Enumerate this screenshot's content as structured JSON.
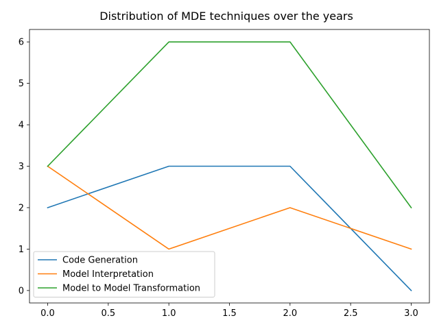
{
  "chart_data": {
    "type": "line",
    "title": "Distribution of MDE techniques over the years",
    "xlabel": "",
    "ylabel": "",
    "x": [
      0,
      1,
      2,
      3
    ],
    "xlim": [
      -0.15,
      3.15
    ],
    "ylim": [
      -0.3,
      6.3
    ],
    "xticks": [
      0.0,
      0.5,
      1.0,
      1.5,
      2.0,
      2.5,
      3.0
    ],
    "xtick_labels": [
      "0.0",
      "0.5",
      "1.0",
      "1.5",
      "2.0",
      "2.5",
      "3.0"
    ],
    "yticks": [
      0,
      1,
      2,
      3,
      4,
      5,
      6
    ],
    "ytick_labels": [
      "0",
      "1",
      "2",
      "3",
      "4",
      "5",
      "6"
    ],
    "grid": false,
    "legend_position": "lower-left",
    "series": [
      {
        "name": "Code Generation",
        "color": "#1f77b4",
        "values": [
          2,
          3,
          3,
          0
        ]
      },
      {
        "name": "Model Interpretation",
        "color": "#ff7f0e",
        "values": [
          3,
          1,
          2,
          1
        ]
      },
      {
        "name": "Model to Model Transformation",
        "color": "#2ca02c",
        "values": [
          3,
          6,
          6,
          2
        ]
      }
    ]
  }
}
